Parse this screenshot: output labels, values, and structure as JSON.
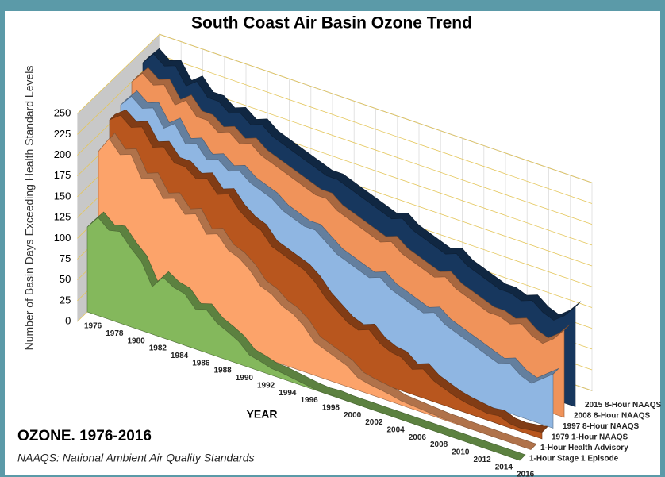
{
  "chart_data": {
    "type": "area3d",
    "title": "South Coast Air Basin Ozone Trend",
    "y_label": "Number of Basin Days Exceeding Health Standard Levels",
    "x_label": "YEAR",
    "annotations": [
      "OZONE. 1976-2016",
      "NAAQS: National Ambient Air Quality Standards"
    ],
    "categories": [
      1976,
      null,
      1978,
      null,
      1980,
      null,
      1982,
      null,
      1984,
      null,
      1986,
      null,
      1988,
      null,
      1990,
      null,
      1992,
      null,
      1994,
      null,
      1996,
      null,
      1998,
      null,
      2000,
      null,
      2002,
      null,
      2004,
      null,
      2006,
      null,
      2008,
      null,
      2010,
      null,
      2012,
      null,
      2014,
      null,
      2016
    ],
    "ylim": [
      0,
      250
    ],
    "yticks": [
      0,
      25,
      50,
      75,
      100,
      125,
      150,
      175,
      200,
      225,
      250
    ],
    "grid": true,
    "series": [
      {
        "name": "1-Hour Stage 1 Episode",
        "color": "#84b85c",
        "values": [
          102,
          118,
          107,
          110,
          95,
          83,
          57,
          73,
          65,
          62,
          48,
          52,
          40,
          34,
          27,
          15,
          12,
          8,
          7,
          5,
          3,
          1,
          0,
          1,
          0,
          0,
          0,
          0,
          0,
          0,
          0,
          0,
          0,
          0,
          0,
          0,
          0,
          0,
          0,
          0,
          0
        ]
      },
      {
        "name": "1-Hour Health Advisory",
        "color": "#fca36a",
        "values": [
          180,
          200,
          185,
          190,
          165,
          170,
          150,
          155,
          140,
          145,
          125,
          130,
          115,
          110,
          100,
          85,
          80,
          70,
          65,
          55,
          40,
          35,
          30,
          25,
          15,
          12,
          10,
          8,
          5,
          4,
          3,
          2,
          1,
          1,
          0,
          0,
          0,
          0,
          0,
          0,
          0
        ]
      },
      {
        "name": "1979 1-Hour NAAQS",
        "color": "#b8561e",
        "values": [
          205,
          215,
          205,
          210,
          190,
          195,
          180,
          180,
          170,
          175,
          160,
          165,
          150,
          140,
          135,
          120,
          115,
          110,
          105,
          95,
          80,
          70,
          60,
          55,
          60,
          48,
          42,
          40,
          30,
          35,
          25,
          20,
          15,
          12,
          10,
          8,
          10,
          5,
          4,
          6,
          8
        ]
      },
      {
        "name": "1997 8-Hour  NAAQS",
        "color": "#8fb6e2",
        "values": [
          210,
          225,
          215,
          220,
          200,
          210,
          190,
          195,
          180,
          185,
          175,
          180,
          170,
          165,
          160,
          150,
          145,
          140,
          140,
          130,
          120,
          115,
          110,
          105,
          110,
          100,
          95,
          90,
          85,
          90,
          80,
          75,
          70,
          65,
          60,
          55,
          60,
          50,
          45,
          55,
          65
        ]
      },
      {
        "name": "2008 8-Hour NAAQS",
        "color": "#f0935a",
        "values": [
          225,
          240,
          230,
          235,
          215,
          225,
          210,
          210,
          200,
          205,
          195,
          200,
          190,
          185,
          180,
          175,
          170,
          165,
          165,
          155,
          150,
          145,
          140,
          135,
          140,
          130,
          125,
          120,
          115,
          120,
          110,
          105,
          100,
          95,
          95,
          90,
          95,
          85,
          80,
          90,
          105
        ]
      },
      {
        "name": "2015 8-Hour NAAQS",
        "color": "#17375e",
        "values": [
          235,
          250,
          240,
          245,
          225,
          235,
          220,
          220,
          210,
          215,
          205,
          210,
          200,
          195,
          190,
          185,
          180,
          175,
          175,
          170,
          165,
          160,
          155,
          150,
          155,
          145,
          140,
          135,
          130,
          135,
          125,
          120,
          115,
          110,
          110,
          105,
          110,
          100,
          95,
          105,
          120
        ]
      }
    ]
  }
}
